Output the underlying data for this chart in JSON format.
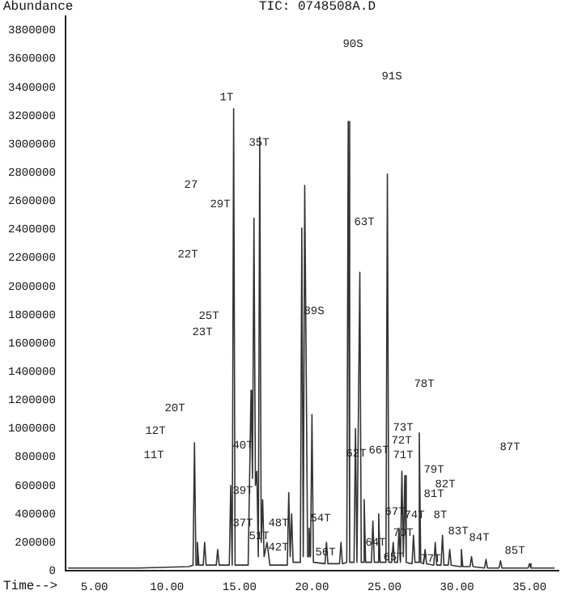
{
  "chart_data": {
    "type": "line",
    "title": "TIC: 0748508A.D",
    "xlabel": "Time-->",
    "ylabel": "Abundance",
    "x": [
      3.2,
      5,
      8,
      11.5,
      11.8,
      11.9,
      12.0,
      12.1,
      12.2,
      12.5,
      12.6,
      12.7,
      13.4,
      13.5,
      13.6,
      14.3,
      14.4,
      14.5,
      14.6,
      14.7,
      15.6,
      15.8,
      15.9,
      16.0,
      16.1,
      16.2,
      16.3,
      16.4,
      16.5,
      16.6,
      16.7,
      16.9,
      17.1,
      18.3,
      18.4,
      18.5,
      18.6,
      18.7,
      19.2,
      19.3,
      19.4,
      19.5,
      19.6,
      19.7,
      19.8,
      19.9,
      20.0,
      20.1,
      20.9,
      21.0,
      21.1,
      21.9,
      22.0,
      22.1,
      22.4,
      22.5,
      22.6,
      22.9,
      23.0,
      23.1,
      23.3,
      23.4,
      23.5,
      23.6,
      23.7,
      24.1,
      24.2,
      24.3,
      24.5,
      24.6,
      24.7,
      25.1,
      25.2,
      25.3,
      25.5,
      25.6,
      25.7,
      25.9,
      26.0,
      26.1,
      26.2,
      26.3,
      26.4,
      26.5,
      26.9,
      27.0,
      27.1,
      27.3,
      27.4,
      27.5,
      27.7,
      27.8,
      27.9,
      28.4,
      28.5,
      28.6,
      28.9,
      29.0,
      29.1,
      29.4,
      29.5,
      29.6,
      30.2,
      30.3,
      30.4,
      30.9,
      31.0,
      31.1,
      31.9,
      32.0,
      32.1,
      32.9,
      33.0,
      33.1,
      34.9,
      35.0,
      35.1,
      36.7
    ],
    "values": [
      20000,
      20000,
      20000,
      30000,
      40000,
      900000,
      40000,
      200000,
      40000,
      40000,
      200000,
      40000,
      40000,
      150000,
      40000,
      40000,
      600000,
      40000,
      3250000,
      40000,
      40000,
      1270000,
      650000,
      2480000,
      600000,
      700000,
      100000,
      3050000,
      200000,
      500000,
      100000,
      200000,
      40000,
      40000,
      550000,
      100000,
      400000,
      60000,
      60000,
      2410000,
      100000,
      2710000,
      1460000,
      100000,
      300000,
      100000,
      1100000,
      60000,
      50000,
      200000,
      50000,
      50000,
      200000,
      50000,
      60000,
      3160000,
      60000,
      60000,
      1000000,
      60000,
      2100000,
      60000,
      60000,
      500000,
      60000,
      60000,
      350000,
      60000,
      60000,
      400000,
      60000,
      60000,
      2790000,
      60000,
      60000,
      200000,
      60000,
      60000,
      300000,
      60000,
      700000,
      100000,
      670000,
      60000,
      50000,
      250000,
      60000,
      60000,
      970000,
      60000,
      50000,
      150000,
      50000,
      40000,
      200000,
      40000,
      40000,
      250000,
      40000,
      40000,
      150000,
      40000,
      30000,
      150000,
      30000,
      30000,
      100000,
      30000,
      20000,
      80000,
      20000,
      20000,
      70000,
      20000,
      20000,
      50000,
      20000,
      20000
    ],
    "color": "#333333",
    "marker": "none",
    "legend": false,
    "grid": false,
    "xlim": [
      3,
      37
    ],
    "xticks": [
      {
        "value": 5,
        "label": "5.00"
      },
      {
        "value": 10,
        "label": "10.00"
      },
      {
        "value": 15,
        "label": "15.00"
      },
      {
        "value": 20,
        "label": "20.00"
      },
      {
        "value": 25,
        "label": "25.00"
      },
      {
        "value": 30,
        "label": "30.00"
      },
      {
        "value": 35,
        "label": "35.00"
      }
    ],
    "ylim": [
      0,
      3900000
    ],
    "yticks": [
      0,
      200000,
      400000,
      600000,
      800000,
      1000000,
      1200000,
      1400000,
      1600000,
      1800000,
      2000000,
      2200000,
      2400000,
      2600000,
      2800000,
      3000000,
      3200000,
      3400000,
      3600000,
      3800000
    ],
    "annotations": [
      "1T",
      "35T",
      "27",
      "29T",
      "22T",
      "90S",
      "91S",
      "63T",
      "25T",
      "23T",
      "20T",
      "12T",
      "11T",
      "40T",
      "39T",
      "37T",
      "48T",
      "42T",
      "51T",
      "89S",
      "78T",
      "73T",
      "72T",
      "62T",
      "66T",
      "87T",
      "71T",
      "79T",
      "82T",
      "81T",
      "74T",
      "8T",
      "54T",
      "67T",
      "70T",
      "64T",
      "56T",
      "65T",
      "83T",
      "77T",
      "84T",
      "85T"
    ]
  }
}
